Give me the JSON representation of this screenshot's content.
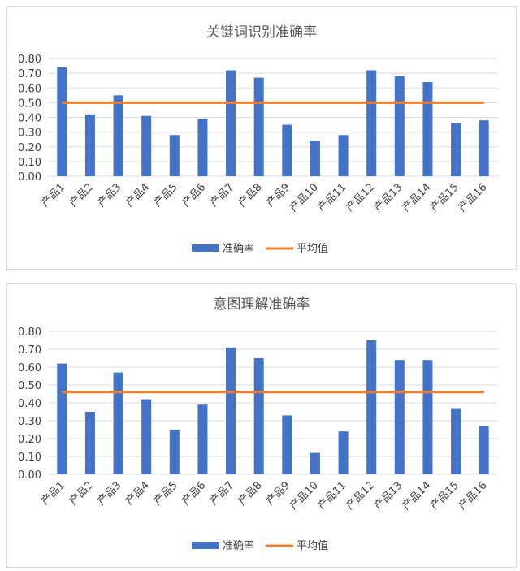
{
  "chart_data": [
    {
      "type": "bar",
      "title": "关键词识别准确率",
      "categories": [
        "产品1",
        "产品2",
        "产品3",
        "产品4",
        "产品5",
        "产品6",
        "产品7",
        "产品8",
        "产品9",
        "产品10",
        "产品11",
        "产品12",
        "产品13",
        "产品14",
        "产品15",
        "产品16"
      ],
      "series": [
        {
          "name": "准确率",
          "type": "bar",
          "color": "#4472c4",
          "values": [
            0.74,
            0.42,
            0.55,
            0.41,
            0.28,
            0.39,
            0.72,
            0.67,
            0.35,
            0.24,
            0.28,
            0.72,
            0.68,
            0.64,
            0.36,
            0.38
          ]
        },
        {
          "name": "平均值",
          "type": "line",
          "color": "#ed7d31",
          "values": [
            0.5,
            0.5,
            0.5,
            0.5,
            0.5,
            0.5,
            0.5,
            0.5,
            0.5,
            0.5,
            0.5,
            0.5,
            0.5,
            0.5,
            0.5,
            0.5
          ]
        }
      ],
      "ylim": [
        0,
        0.8
      ],
      "yticks": [
        "0.00",
        "0.10",
        "0.20",
        "0.30",
        "0.40",
        "0.50",
        "0.60",
        "0.70",
        "0.80"
      ],
      "grid": true,
      "legend": "bottom"
    },
    {
      "type": "bar",
      "title": "意图理解准确率",
      "categories": [
        "产品1",
        "产品2",
        "产品3",
        "产品4",
        "产品5",
        "产品6",
        "产品7",
        "产品8",
        "产品9",
        "产品10",
        "产品11",
        "产品12",
        "产品13",
        "产品14",
        "产品15",
        "产品16"
      ],
      "series": [
        {
          "name": "准确率",
          "type": "bar",
          "color": "#4472c4",
          "values": [
            0.62,
            0.35,
            0.57,
            0.42,
            0.25,
            0.39,
            0.71,
            0.65,
            0.33,
            0.12,
            0.24,
            0.75,
            0.64,
            0.64,
            0.37,
            0.27
          ]
        },
        {
          "name": "平均值",
          "type": "line",
          "color": "#ed7d31",
          "values": [
            0.46,
            0.46,
            0.46,
            0.46,
            0.46,
            0.46,
            0.46,
            0.46,
            0.46,
            0.46,
            0.46,
            0.46,
            0.46,
            0.46,
            0.46,
            0.46
          ]
        }
      ],
      "ylim": [
        0,
        0.8
      ],
      "yticks": [
        "0.00",
        "0.10",
        "0.20",
        "0.30",
        "0.40",
        "0.50",
        "0.60",
        "0.70",
        "0.80"
      ],
      "grid": true,
      "legend": "bottom"
    }
  ]
}
